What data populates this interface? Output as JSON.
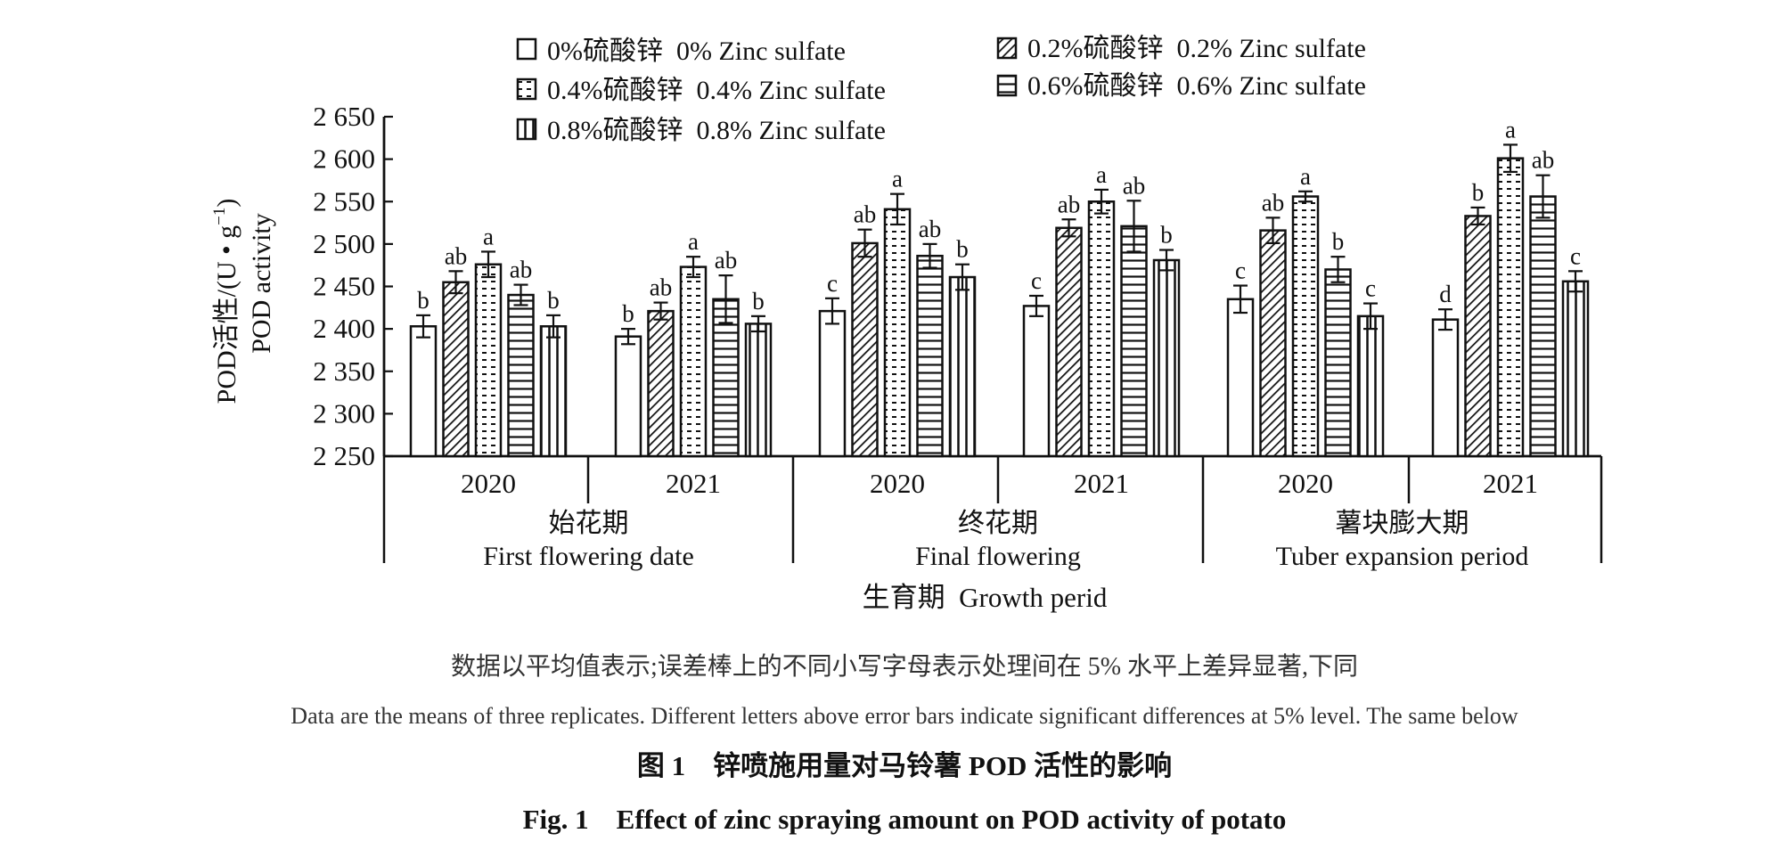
{
  "chart_data": {
    "type": "bar",
    "ylabel_cn": "POD活性/(U • g",
    "ylabel_sup": "−1",
    "ylabel_close": ")",
    "ylabel_en": "POD activity",
    "xlabel": "生育期  Growth perid",
    "ylim": [
      2250,
      2650
    ],
    "yticks": [
      2250,
      2300,
      2350,
      2400,
      2450,
      2500,
      2550,
      2600,
      2650
    ],
    "ytick_labels": [
      "2 250",
      "2 300",
      "2 350",
      "2 400",
      "2 450",
      "2 500",
      "2 550",
      "2 600",
      "2 650"
    ],
    "legend_position": "top",
    "series": [
      {
        "name": "0%硫酸锌  0% Zinc sulfate",
        "pattern": "blank"
      },
      {
        "name": "0.2%硫酸锌  0.2% Zinc sulfate",
        "pattern": "diagonal"
      },
      {
        "name": "0.4%硫酸锌  0.4% Zinc sulfate",
        "pattern": "dashes"
      },
      {
        "name": "0.6%硫酸锌  0.6% Zinc sulfate",
        "pattern": "horizontal"
      },
      {
        "name": "0.8%硫酸锌  0.8% Zinc sulfate",
        "pattern": "vertical"
      }
    ],
    "periods": [
      {
        "name_cn": "始花期",
        "name_en": "First flowering date",
        "years": [
          {
            "year": "2020",
            "values": [
              2403,
              2455,
              2476,
              2440,
              2403
            ],
            "errors": [
              13,
              13,
              15,
              12,
              13
            ],
            "letters": [
              "b",
              "ab",
              "a",
              "ab",
              "b"
            ]
          },
          {
            "year": "2021",
            "values": [
              2391,
              2421,
              2473,
              2435,
              2406
            ],
            "errors": [
              9,
              10,
              12,
              28,
              9
            ],
            "letters": [
              "b",
              "ab",
              "a",
              "ab",
              "b"
            ]
          }
        ]
      },
      {
        "name_cn": "终花期",
        "name_en": "Final flowering",
        "years": [
          {
            "year": "2020",
            "values": [
              2421,
              2501,
              2541,
              2486,
              2461
            ],
            "errors": [
              15,
              16,
              18,
              14,
              15
            ],
            "letters": [
              "c",
              "ab",
              "a",
              "ab",
              "b"
            ]
          },
          {
            "year": "2021",
            "values": [
              2427,
              2519,
              2550,
              2521,
              2481
            ],
            "errors": [
              12,
              10,
              14,
              30,
              12
            ],
            "letters": [
              "c",
              "ab",
              "a",
              "ab",
              "b"
            ]
          }
        ]
      },
      {
        "name_cn": "薯块膨大期",
        "name_en": "Tuber expansion  period",
        "years": [
          {
            "year": "2020",
            "values": [
              2435,
              2516,
              2556,
              2470,
              2415
            ],
            "errors": [
              16,
              15,
              6,
              15,
              15
            ],
            "letters": [
              "c",
              "ab",
              "a",
              "b",
              "c"
            ]
          },
          {
            "year": "2021",
            "values": [
              2411,
              2533,
              2601,
              2556,
              2456
            ],
            "errors": [
              12,
              10,
              16,
              25,
              12
            ],
            "letters": [
              "d",
              "b",
              "a",
              "ab",
              "c"
            ]
          }
        ]
      }
    ]
  },
  "notes": {
    "cn": "数据以平均值表示;误差棒上的不同小写字母表示处理间在 5% 水平上差异显著,下同",
    "en": "Data are the means of three replicates. Different letters above error bars indicate significant differences at 5% level. The same below"
  },
  "caption": {
    "cn": "图 1    锌喷施用量对马铃薯 POD 活性的影响",
    "en": "Fig. 1    Effect of zinc spraying amount on POD activity of potato"
  }
}
